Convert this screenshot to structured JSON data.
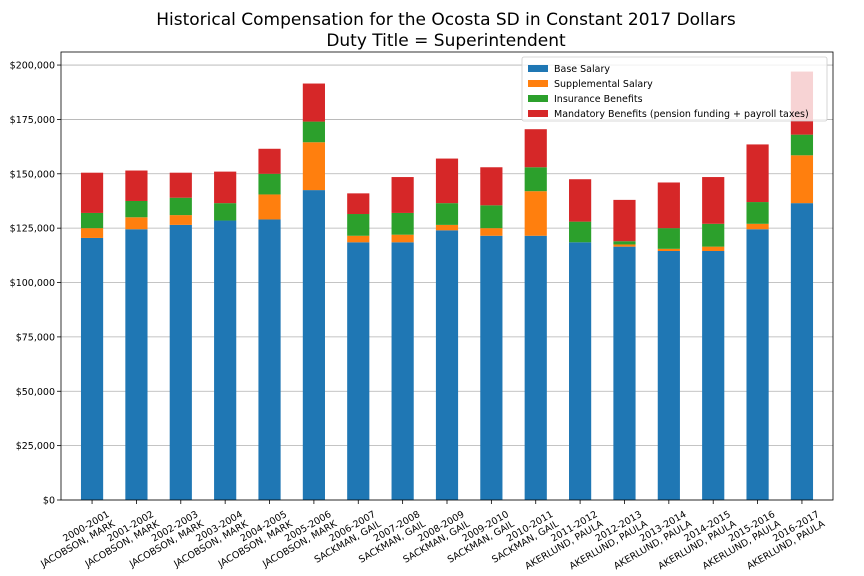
{
  "chart_data": {
    "type": "bar",
    "stacked": true,
    "title": "Historical Compensation for the Ocosta SD in Constant 2017 Dollars",
    "subtitle": "Duty Title = Superintendent",
    "xlabel": "",
    "ylabel": "",
    "ylim": [
      0,
      206000
    ],
    "yticks": [
      0,
      25000,
      50000,
      75000,
      100000,
      125000,
      150000,
      175000,
      200000
    ],
    "ytick_labels": [
      "$0",
      "$25,000",
      "$50,000",
      "$75,000",
      "$100,000",
      "$125,000",
      "$150,000",
      "$175,000",
      "$200,000"
    ],
    "grid": "horizontal",
    "legend_position": "top-right",
    "categories": [
      [
        "2000-2001",
        "JACOBSON, MARK"
      ],
      [
        "2001-2002",
        "JACOBSON, MARK"
      ],
      [
        "2002-2003",
        "JACOBSON, MARK"
      ],
      [
        "2003-2004",
        "JACOBSON, MARK"
      ],
      [
        "2004-2005",
        "JACOBSON, MARK"
      ],
      [
        "2005-2006",
        "JACOBSON, MARK"
      ],
      [
        "2006-2007",
        "SACKMAN, GAIL"
      ],
      [
        "2007-2008",
        "SACKMAN, GAIL"
      ],
      [
        "2008-2009",
        "SACKMAN, GAIL"
      ],
      [
        "2009-2010",
        "SACKMAN, GAIL"
      ],
      [
        "2010-2011",
        "SACKMAN, GAIL"
      ],
      [
        "2011-2012",
        "AKERLUND, PAULA"
      ],
      [
        "2012-2013",
        "AKERLUND, PAULA"
      ],
      [
        "2013-2014",
        "AKERLUND, PAULA"
      ],
      [
        "2014-2015",
        "AKERLUND, PAULA"
      ],
      [
        "2015-2016",
        "AKERLUND, PAULA"
      ],
      [
        "2016-2017",
        "AKERLUND, PAULA"
      ]
    ],
    "series": [
      {
        "name": "Base Salary",
        "color": "#1f77b4",
        "values": [
          120500,
          124500,
          126500,
          128500,
          129000,
          142500,
          118500,
          118500,
          124000,
          121500,
          121500,
          118500,
          116500,
          114500,
          114500,
          124500,
          136500
        ]
      },
      {
        "name": "Supplemental Salary",
        "color": "#ff7f0e",
        "values": [
          4500,
          5500,
          4500,
          0,
          11500,
          22000,
          3000,
          3500,
          2500,
          3500,
          20500,
          0,
          1000,
          1000,
          2000,
          2500,
          22000
        ]
      },
      {
        "name": "Insurance Benefits",
        "color": "#2ca02c",
        "values": [
          7000,
          7500,
          8000,
          8000,
          9500,
          9500,
          10000,
          10000,
          10000,
          10500,
          11000,
          9500,
          1500,
          9500,
          10500,
          10000,
          9500
        ]
      },
      {
        "name": "Mandatory Benefits (pension funding + payroll taxes)",
        "color": "#d62728",
        "values": [
          18500,
          14000,
          11500,
          14500,
          11500,
          17500,
          9500,
          16500,
          20500,
          17500,
          17500,
          19500,
          19000,
          21000,
          21500,
          26500,
          29000
        ]
      }
    ]
  }
}
